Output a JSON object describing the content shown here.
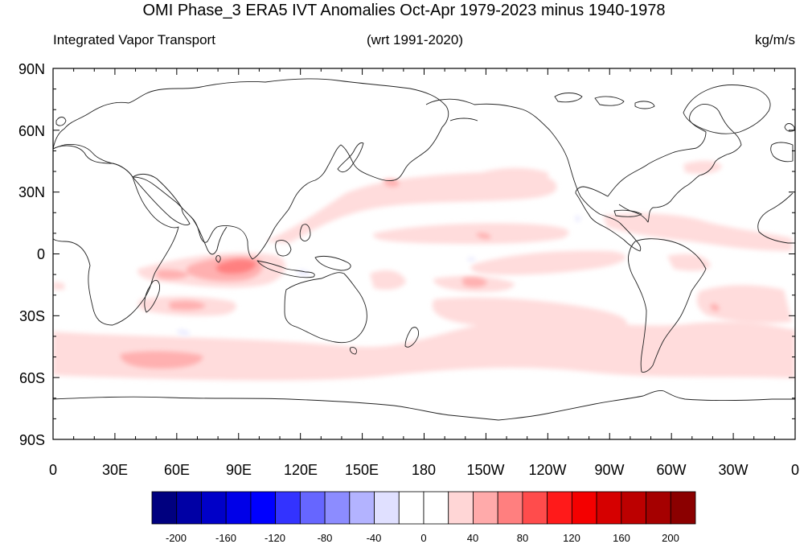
{
  "title": "OMI Phase_3 ERA5 IVT Anomalies Oct-Apr 1979-2023 minus 1940-1978",
  "left_string": "Integrated Vapor Transport",
  "center_string": "(wrt 1991-2020)",
  "right_string": "kg/m/s",
  "lat_ticks": [
    "90N",
    "60N",
    "30N",
    "0",
    "30S",
    "60S",
    "90S"
  ],
  "lon_ticks": [
    "0",
    "30E",
    "60E",
    "90E",
    "120E",
    "150E",
    "180",
    "150W",
    "120W",
    "90W",
    "60W",
    "30W",
    "0"
  ],
  "colorbar": {
    "colors": [
      "#00007f",
      "#0000a5",
      "#0000c8",
      "#0000e8",
      "#0000ff",
      "#3333ff",
      "#6666ff",
      "#8c8cff",
      "#b3b3ff",
      "#e0e0ff",
      "#ffffff",
      "#ffffff",
      "#ffd6d6",
      "#ffaaaa",
      "#ff7f7f",
      "#ff4c4c",
      "#ff1a1a",
      "#f40000",
      "#d60000",
      "#bc0000",
      "#a50000",
      "#8b0000"
    ],
    "labels": [
      "-200",
      "-160",
      "-120",
      "-80",
      "-40",
      "0",
      "40",
      "80",
      "120",
      "160",
      "200"
    ]
  },
  "anomalies": [
    {
      "lon": 90,
      "lat": -7,
      "value": 80
    },
    {
      "lon": 80,
      "lat": -8,
      "value": 60
    },
    {
      "lon": 70,
      "lat": -25,
      "value": 40
    },
    {
      "lon": 75,
      "lat": -52,
      "value": 40
    },
    {
      "lon": 165,
      "lat": 34,
      "value": 40
    },
    {
      "lon": -145,
      "lat": 9,
      "value": 40
    },
    {
      "lon": -150,
      "lat": -14,
      "value": 40
    },
    {
      "lon": -40,
      "lat": -37,
      "value": 40
    },
    {
      "lon": -150,
      "lat": 18,
      "value": 20
    },
    {
      "lon": 150,
      "lat": 32,
      "value": 20
    },
    {
      "lon": 90,
      "lat": -50,
      "value": 20
    },
    {
      "lon": -60,
      "lat": -45,
      "value": 20
    },
    {
      "lon": -20,
      "lat": -30,
      "value": 20
    },
    {
      "lon": -100,
      "lat": -5,
      "value": 20
    },
    {
      "lon": -75,
      "lat": 15,
      "value": 20
    },
    {
      "lon": 60,
      "lat": -28,
      "value": -20
    },
    {
      "lon": 65,
      "lat": -38,
      "value": -20
    },
    {
      "lon": -145,
      "lat": 25,
      "value": -20
    }
  ]
}
